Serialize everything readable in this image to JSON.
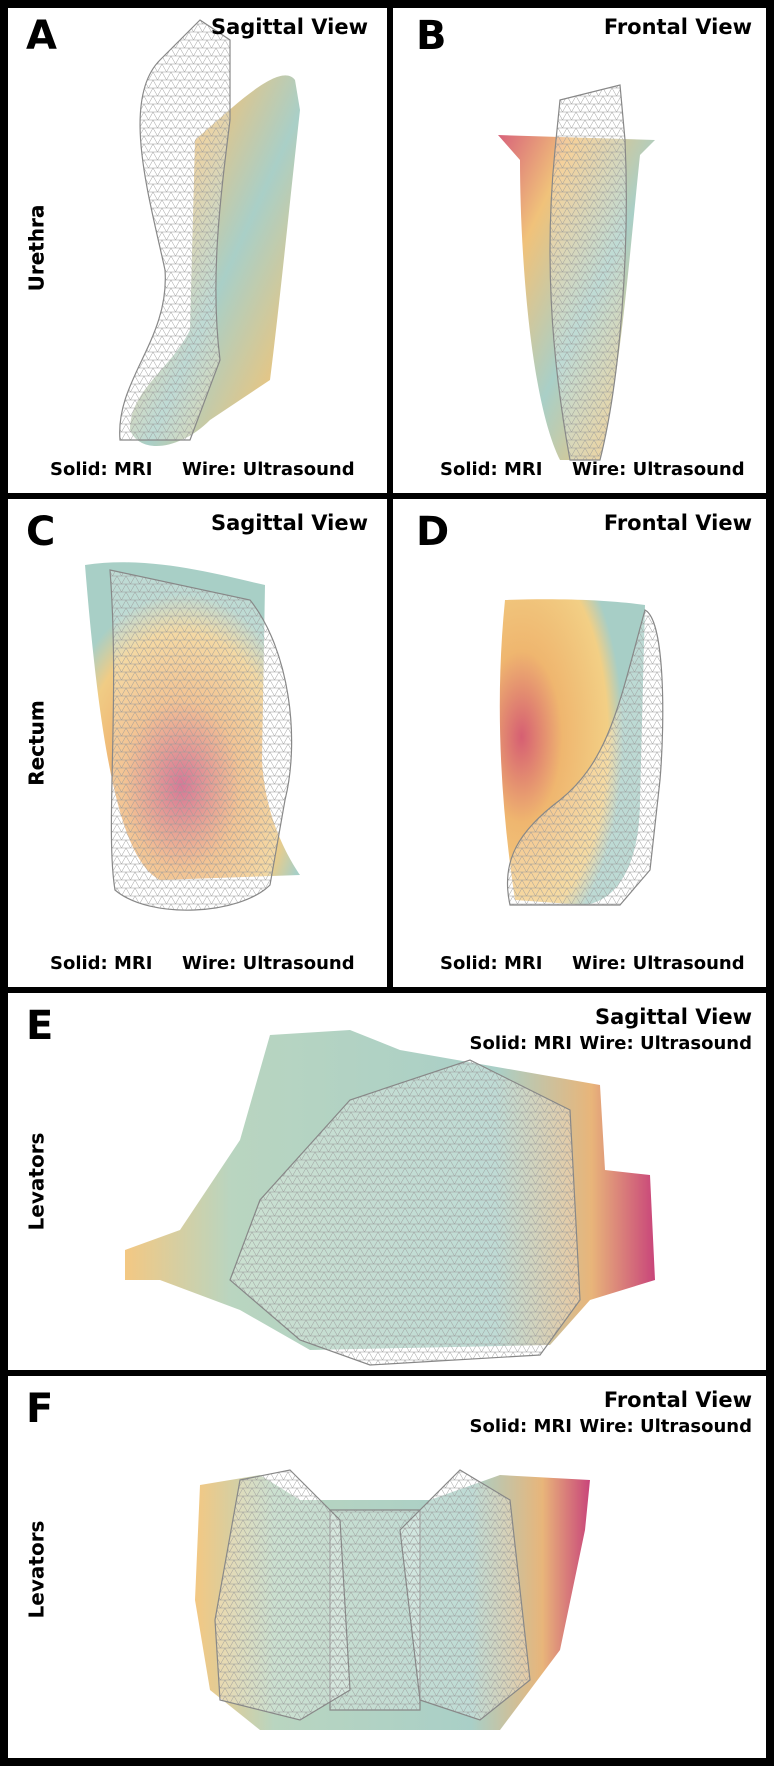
{
  "panels": [
    {
      "letter": "A",
      "view": "Sagittal View",
      "structure": "Urethra",
      "legend": [
        "Solid: MRI",
        "Wire: Ultrasound"
      ]
    },
    {
      "letter": "B",
      "view": "Frontal View",
      "structure": "Urethra",
      "legend": [
        "Solid: MRI",
        "Wire: Ultrasound"
      ]
    },
    {
      "letter": "C",
      "view": "Sagittal View",
      "structure": "Rectum",
      "legend": [
        "Solid: MRI",
        "Wire: Ultrasound"
      ]
    },
    {
      "letter": "D",
      "view": "Frontal View",
      "structure": "Rectum",
      "legend": [
        "Solid: MRI",
        "Wire: Ultrasound"
      ]
    },
    {
      "letter": "E",
      "view": "Sagittal View",
      "structure": "Levators",
      "legend": [
        "Solid: MRI",
        "Wire: Ultrasound"
      ]
    },
    {
      "letter": "F",
      "view": "Frontal View",
      "structure": "Levators",
      "legend": [
        "Solid: MRI",
        "Wire: Ultrasound"
      ]
    }
  ]
}
